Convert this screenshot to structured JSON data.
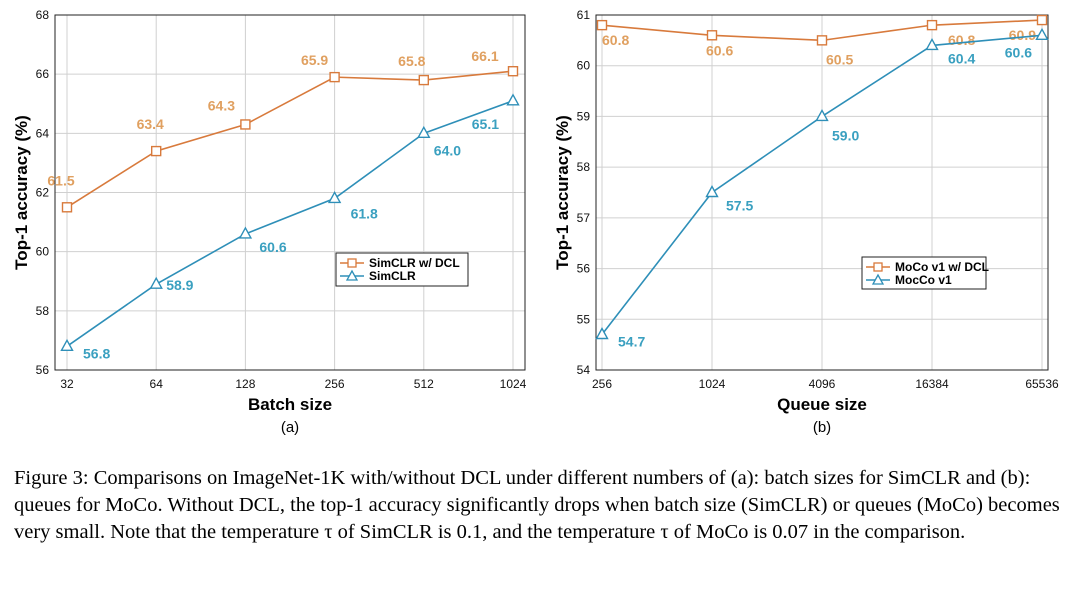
{
  "colors": {
    "orange": "#D87A3C",
    "blue": "#2E8FB8",
    "orange_label": "#E0A060",
    "blue_label": "#3AA0C0"
  },
  "chart_data": [
    {
      "type": "line",
      "panel_label": "(a)",
      "xlabel": "Batch size",
      "ylabel": "Top-1 accuracy (%)",
      "x": [
        "32",
        "64",
        "128",
        "256",
        "512",
        "1024"
      ],
      "xscale": "log2",
      "ylim": [
        56,
        68
      ],
      "yticks": [
        "56",
        "58",
        "60",
        "62",
        "64",
        "66",
        "68"
      ],
      "grid": true,
      "legend_position": "center-right",
      "series": [
        {
          "name": "SimCLR w/ DCL",
          "marker": "square",
          "color": "orange",
          "values": [
            61.5,
            63.4,
            64.3,
            65.9,
            65.8,
            66.1
          ],
          "labels": [
            "61.5",
            "63.4",
            "64.3",
            "65.9",
            "65.8",
            "66.1"
          ]
        },
        {
          "name": "SimCLR",
          "marker": "triangle",
          "color": "blue",
          "values": [
            56.8,
            58.9,
            60.6,
            61.8,
            64.0,
            65.1
          ],
          "labels": [
            "56.8",
            "58.9",
            "60.6",
            "61.8",
            "64.0",
            "65.1"
          ]
        }
      ]
    },
    {
      "type": "line",
      "panel_label": "(b)",
      "xlabel": "Queue size",
      "ylabel": "Top-1 accuracy (%)",
      "x": [
        "256",
        "1024",
        "4096",
        "16384",
        "65536"
      ],
      "xscale": "log2",
      "ylim": [
        54,
        61
      ],
      "yticks": [
        "54",
        "55",
        "56",
        "57",
        "58",
        "59",
        "60",
        "61"
      ],
      "grid": true,
      "legend_position": "center-right",
      "series": [
        {
          "name": "MoCo v1 w/ DCL",
          "marker": "square",
          "color": "orange",
          "values": [
            60.8,
            60.6,
            60.5,
            60.8,
            60.9
          ],
          "labels": [
            "60.8",
            "60.6",
            "60.5",
            "60.8",
            "60.9"
          ]
        },
        {
          "name": "MocCo v1",
          "marker": "triangle",
          "color": "blue",
          "values": [
            54.7,
            57.5,
            59.0,
            60.4,
            60.6
          ],
          "labels": [
            "54.7",
            "57.5",
            "59.0",
            "60.4",
            "60.6"
          ]
        }
      ]
    }
  ],
  "caption": "Figure 3: Comparisons on ImageNet-1K with/without DCL under different numbers of (a): batch sizes for SimCLR and (b): queues for MoCo. Without DCL, the top-1 accuracy significantly drops when batch size (SimCLR) or queues (MoCo) becomes very small. Note that the temperature τ of SimCLR is 0.1, and the temperature τ of MoCo is 0.07 in the comparison."
}
